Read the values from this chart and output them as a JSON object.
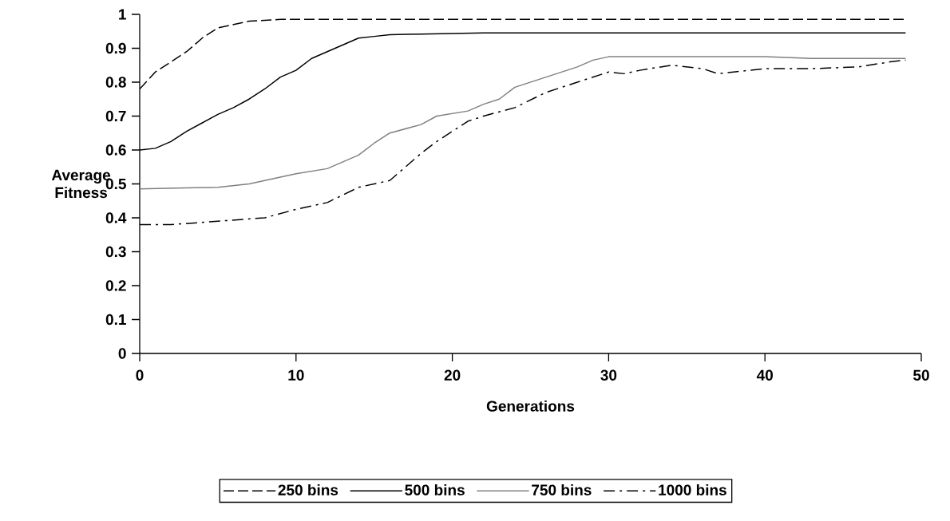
{
  "chart_data": {
    "type": "line",
    "xlabel": "Generations",
    "ylabel": "Average Fitness",
    "xlim": [
      0,
      50
    ],
    "ylim": [
      0,
      1
    ],
    "xticks": [
      0,
      10,
      20,
      30,
      40,
      50
    ],
    "yticks": [
      0,
      0.1,
      0.2,
      0.3,
      0.4,
      0.5,
      0.6,
      0.7,
      0.8,
      0.9,
      1
    ],
    "grid": false,
    "legend": "bottom",
    "marker": "none",
    "series": [
      {
        "name": "250 bins",
        "color": "#000000",
        "line_style": "dashed",
        "x": [
          0,
          1,
          2,
          3,
          4,
          5,
          6,
          7,
          9,
          15,
          25,
          35,
          45,
          49
        ],
        "values": [
          0.78,
          0.83,
          0.86,
          0.89,
          0.93,
          0.96,
          0.97,
          0.98,
          0.985,
          0.985,
          0.985,
          0.985,
          0.985,
          0.985
        ]
      },
      {
        "name": "500 bins",
        "color": "#000000",
        "line_style": "solid",
        "x": [
          0,
          1,
          2,
          3,
          4,
          5,
          6,
          7,
          8,
          9,
          10,
          11,
          12,
          13,
          14,
          15,
          16,
          18,
          22,
          30,
          40,
          49
        ],
        "values": [
          0.6,
          0.605,
          0.625,
          0.655,
          0.68,
          0.705,
          0.725,
          0.75,
          0.78,
          0.815,
          0.835,
          0.87,
          0.89,
          0.91,
          0.93,
          0.935,
          0.94,
          0.942,
          0.945,
          0.945,
          0.945,
          0.945
        ]
      },
      {
        "name": "750 bins",
        "color": "#808080",
        "line_style": "solid",
        "x": [
          0,
          5,
          7,
          10,
          12,
          14,
          15,
          16,
          18,
          19,
          21,
          22,
          23,
          24,
          26,
          28,
          29,
          30,
          32,
          40,
          43,
          49
        ],
        "values": [
          0.485,
          0.49,
          0.5,
          0.53,
          0.545,
          0.585,
          0.62,
          0.65,
          0.675,
          0.7,
          0.715,
          0.735,
          0.75,
          0.785,
          0.815,
          0.845,
          0.865,
          0.875,
          0.875,
          0.875,
          0.87,
          0.87
        ]
      },
      {
        "name": "1000 bins",
        "color": "#000000",
        "line_style": "dashdot",
        "x": [
          0,
          2,
          5,
          8,
          10,
          12,
          14,
          15,
          16,
          17,
          18,
          19,
          20,
          21,
          22,
          24,
          26,
          28,
          30,
          31,
          32,
          34,
          36,
          37,
          38,
          40,
          43,
          46,
          48,
          49
        ],
        "values": [
          0.38,
          0.38,
          0.39,
          0.4,
          0.425,
          0.445,
          0.49,
          0.5,
          0.51,
          0.55,
          0.59,
          0.625,
          0.655,
          0.685,
          0.7,
          0.725,
          0.77,
          0.8,
          0.83,
          0.825,
          0.835,
          0.85,
          0.84,
          0.825,
          0.83,
          0.84,
          0.84,
          0.845,
          0.86,
          0.865
        ]
      }
    ]
  }
}
